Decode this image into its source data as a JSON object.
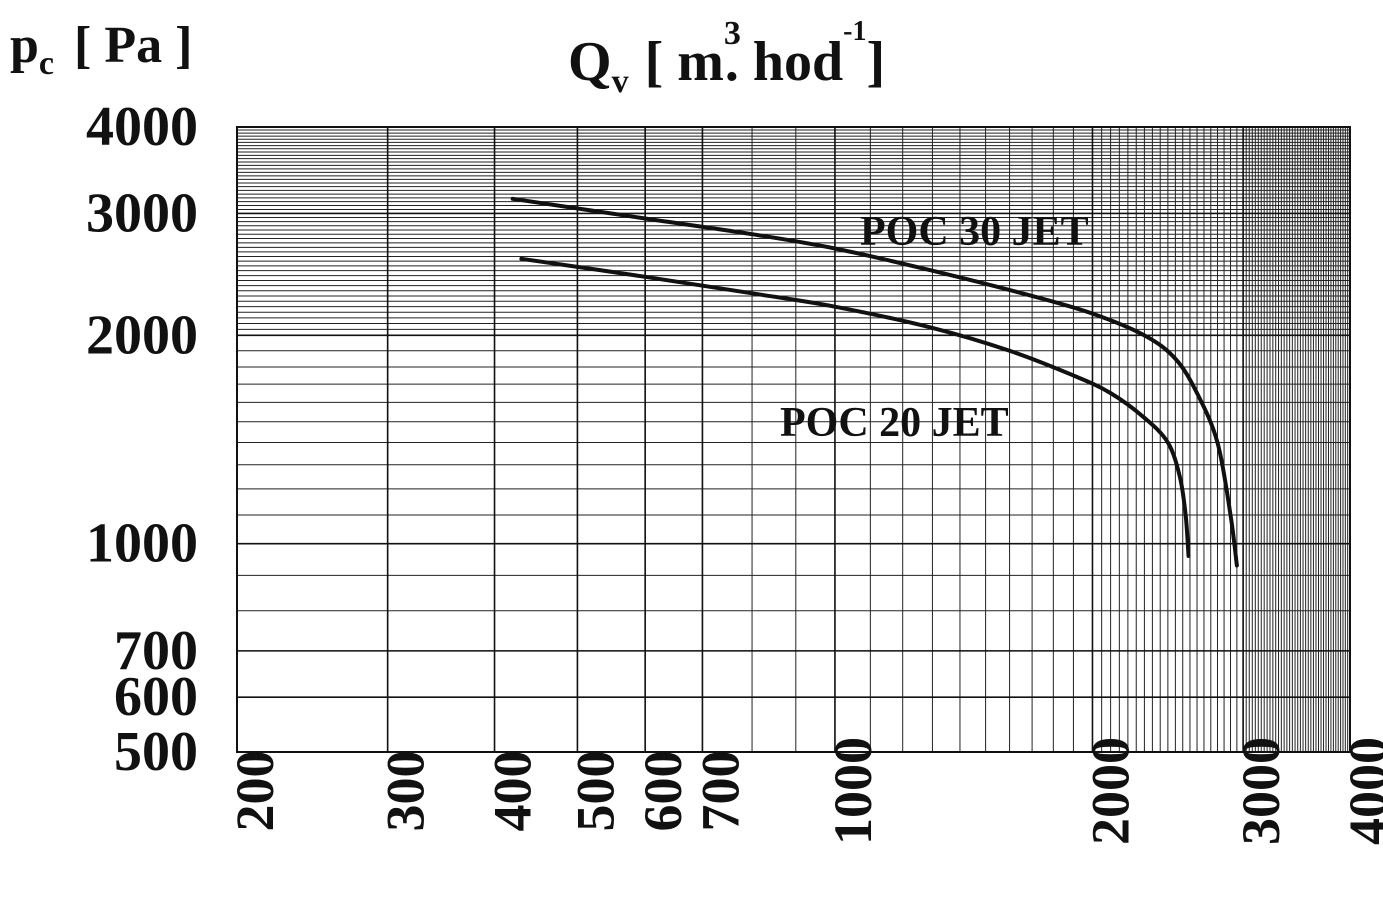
{
  "chart_data": {
    "type": "line",
    "xscale": "log",
    "yscale": "log",
    "xlim": [
      200,
      4000
    ],
    "ylim": [
      500,
      4000
    ],
    "grid": true,
    "x_ticks": [
      200,
      300,
      400,
      500,
      600,
      700,
      1000,
      2000,
      3000,
      4000
    ],
    "x_tick_labels": [
      "200",
      "300",
      "400",
      "500",
      "600",
      "700",
      "1000",
      "2000",
      "3000",
      "4000"
    ],
    "y_ticks": [
      500,
      600,
      700,
      1000,
      2000,
      3000,
      4000
    ],
    "y_tick_labels": [
      "500",
      "600",
      "700",
      "1000",
      "2000",
      "3000",
      "4000"
    ],
    "ylabel": {
      "main": "p",
      "sub": "c",
      "unit": "[ Pa ]"
    },
    "xlabel": {
      "main": "Q",
      "sub": "v",
      "open": "[ m",
      "sup1": "3",
      "mid": ". hod",
      "sup2": "-1",
      "close": "]"
    },
    "series": [
      {
        "name": "POC 30 JET",
        "x": [
          420,
          600,
          800,
          1000,
          1300,
          1700,
          2000,
          2300,
          2500,
          2650,
          2800,
          2900,
          2950
        ],
        "y": [
          3150,
          2950,
          2800,
          2670,
          2480,
          2280,
          2150,
          2000,
          1850,
          1650,
          1400,
          1100,
          930
        ]
      },
      {
        "name": "POC 20 JET",
        "x": [
          430,
          600,
          800,
          1000,
          1300,
          1600,
          1900,
          2100,
          2300,
          2450,
          2530,
          2570,
          2590
        ],
        "y": [
          2580,
          2430,
          2300,
          2200,
          2050,
          1900,
          1750,
          1650,
          1520,
          1400,
          1250,
          1100,
          960
        ]
      }
    ]
  }
}
